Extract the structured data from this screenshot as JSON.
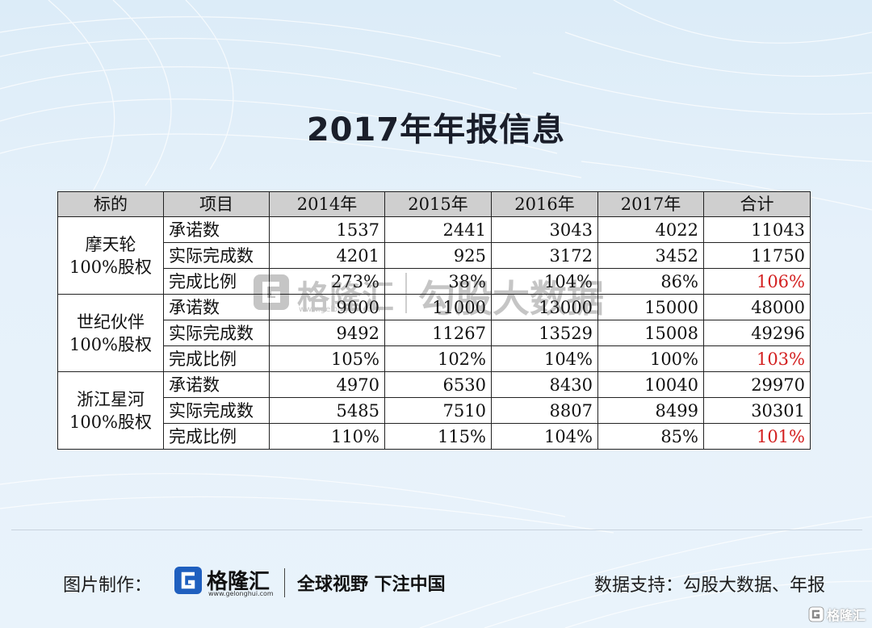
{
  "title": "2017年年报信息",
  "table": {
    "headers": [
      "标的",
      "项目",
      "2014年",
      "2015年",
      "2016年",
      "2017年",
      "合计"
    ],
    "groups": [
      {
        "target_line1": "摩天轮",
        "target_line2": "100%股权",
        "rows": [
          {
            "item": "承诺数",
            "values": [
              "1537",
              "2441",
              "3043",
              "4022",
              "11043"
            ]
          },
          {
            "item": "实际完成数",
            "values": [
              "4201",
              "925",
              "3172",
              "3452",
              "11750"
            ]
          },
          {
            "item": "完成比例",
            "values": [
              "273%",
              "38%",
              "104%",
              "86%",
              "106%"
            ]
          }
        ]
      },
      {
        "target_line1": "世纪伙伴",
        "target_line2": "100%股权",
        "rows": [
          {
            "item": "承诺数",
            "values": [
              "9000",
              "11000",
              "13000",
              "15000",
              "48000"
            ]
          },
          {
            "item": "实际完成数",
            "values": [
              "9492",
              "11267",
              "13529",
              "15008",
              "49296"
            ]
          },
          {
            "item": "完成比例",
            "values": [
              "105%",
              "102%",
              "104%",
              "100%",
              "103%"
            ]
          }
        ]
      },
      {
        "target_line1": "浙江星河",
        "target_line2": "100%股权",
        "rows": [
          {
            "item": "承诺数",
            "values": [
              "4970",
              "6530",
              "8430",
              "10040",
              "29970"
            ]
          },
          {
            "item": "实际完成数",
            "values": [
              "5485",
              "7510",
              "8807",
              "8499",
              "30301"
            ]
          },
          {
            "item": "完成比例",
            "values": [
              "110%",
              "115%",
              "104%",
              "85%",
              "101%"
            ]
          }
        ]
      }
    ]
  },
  "watermark": {
    "brand": "格隆汇",
    "url": "www.gelonghui.com",
    "source": "勾股大数据"
  },
  "footer": {
    "made_by_label": "图片制作：",
    "brand": "格隆汇",
    "brand_url": "www.gelonghui.com",
    "slogan": "全球视野 下注中国",
    "data_source": "数据支持：勾股大数据、年报"
  },
  "corner_watermark": "格隆汇",
  "colors": {
    "highlight_red": "#d32020",
    "header_gray": "#cfcfcf",
    "logo_blue": "#1f5fbf"
  }
}
